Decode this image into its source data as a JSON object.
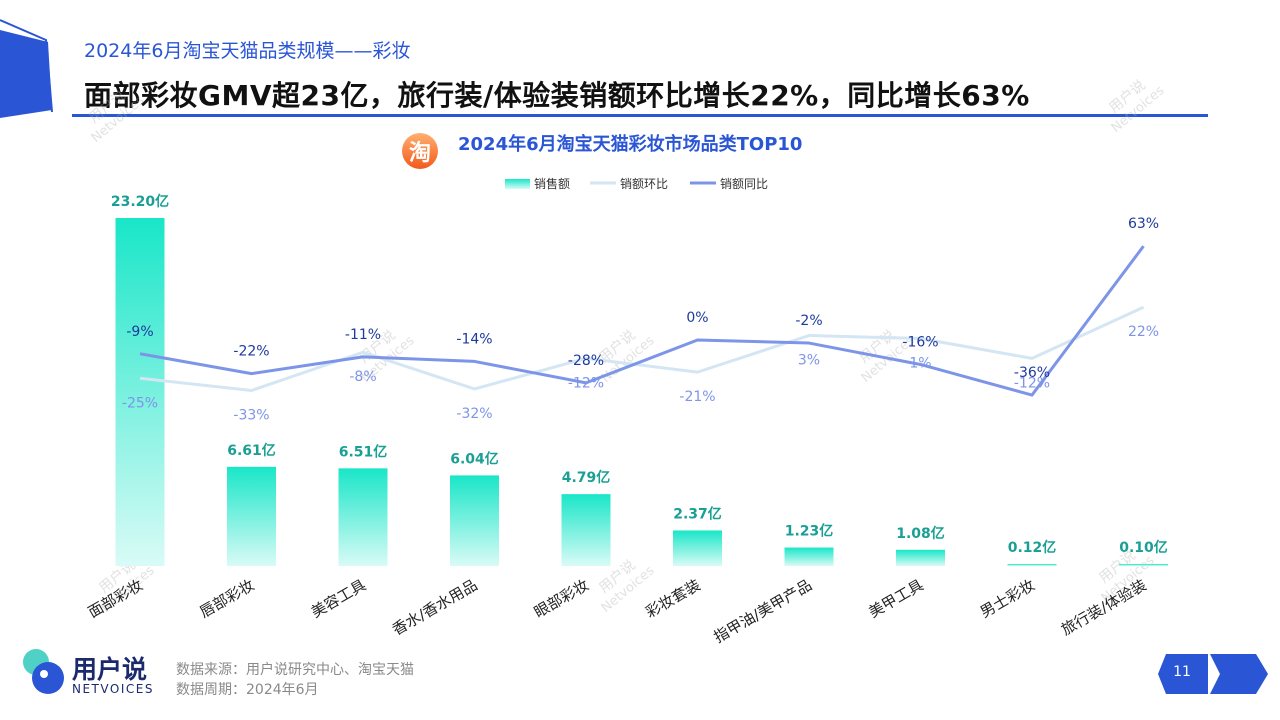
{
  "header": {
    "subtitle": "2024年6月淘宝天猫品类规模——彩妆",
    "headline": "面部彩妆GMV超23亿，旅行装/体验装销额环比增长22%，同比增长63%"
  },
  "chart_data": {
    "type": "bar",
    "title": "2024年6月淘宝天猫彩妆市场品类TOP10",
    "title_icon": "淘",
    "legend_position": "top",
    "categories": [
      "面部彩妆",
      "唇部彩妆",
      "美容工具",
      "香水/香水用品",
      "眼部彩妆",
      "彩妆套装",
      "指甲油/美甲产品",
      "美甲工具",
      "男士彩妆",
      "旅行装/体验装"
    ],
    "series": [
      {
        "name": "销售额",
        "kind": "bar",
        "values": [
          23.2,
          6.61,
          6.51,
          6.04,
          4.79,
          2.37,
          1.23,
          1.08,
          0.12,
          0.1
        ],
        "labels": [
          "23.20亿",
          "6.61亿",
          "6.51亿",
          "6.04亿",
          "4.79亿",
          "2.37亿",
          "1.23亿",
          "1.08亿",
          "0.12亿",
          "0.10亿"
        ]
      },
      {
        "name": "销额环比",
        "kind": "line",
        "values": [
          -25,
          -33,
          -8,
          -32,
          -12,
          -21,
          3,
          1,
          -12,
          22
        ],
        "labels": [
          "-25%",
          "-33%",
          "-8%",
          "-32%",
          "-12%",
          "-21%",
          "3%",
          "1%",
          "-12%",
          "22%"
        ]
      },
      {
        "name": "销额同比",
        "kind": "line",
        "values": [
          -9,
          -22,
          -11,
          -14,
          -28,
          0,
          -2,
          -16,
          -36,
          63
        ],
        "labels": [
          "-9%",
          "-22%",
          "-11%",
          "-14%",
          "-28%",
          "0%",
          "-2%",
          "-16%",
          "-36%",
          "63%"
        ]
      }
    ]
  },
  "colors": {
    "bar_top": "#19e6c8",
    "bar_bottom": "#d9fbf6",
    "bar_label": "#1a9f95",
    "mom": "#d4e6f3",
    "yoy": "#7d95e8",
    "accent": "#2a56d6"
  },
  "watermark": {
    "cn": "用户说",
    "en": "Netvoices"
  },
  "footer": {
    "logo_cn": "用户说",
    "logo_en": "NETVOICES",
    "source": "数据来源：用户说研究中心、淘宝天猫",
    "period": "数据周期：2024年6月",
    "page": "11"
  }
}
